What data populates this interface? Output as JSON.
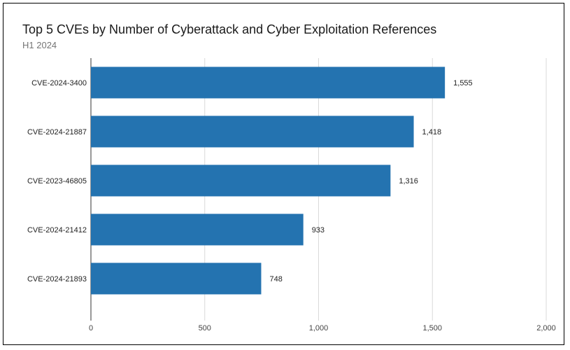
{
  "chart_data": {
    "type": "bar",
    "orientation": "horizontal",
    "title": "Top 5 CVEs by Number of Cyberattack and Cyber Exploitation References",
    "subtitle": "H1 2024",
    "categories": [
      "CVE-2024-3400",
      "CVE-2024-21887",
      "CVE-2023-46805",
      "CVE-2024-21412",
      "CVE-2024-21893"
    ],
    "values": [
      1555,
      1418,
      1316,
      933,
      748
    ],
    "value_labels": [
      "1,555",
      "1,418",
      "1,316",
      "933",
      "748"
    ],
    "xlim": [
      0,
      2000
    ],
    "x_ticks": [
      0,
      500,
      1000,
      1500,
      2000
    ],
    "x_tick_labels": [
      "0",
      "500",
      "1,000",
      "1,500",
      "2,000"
    ],
    "grid": true,
    "legend": "none",
    "colors": {
      "bar": "#2473b0",
      "grid": "#d9d9d9",
      "axis": "#333333",
      "frame": "#000000"
    }
  }
}
